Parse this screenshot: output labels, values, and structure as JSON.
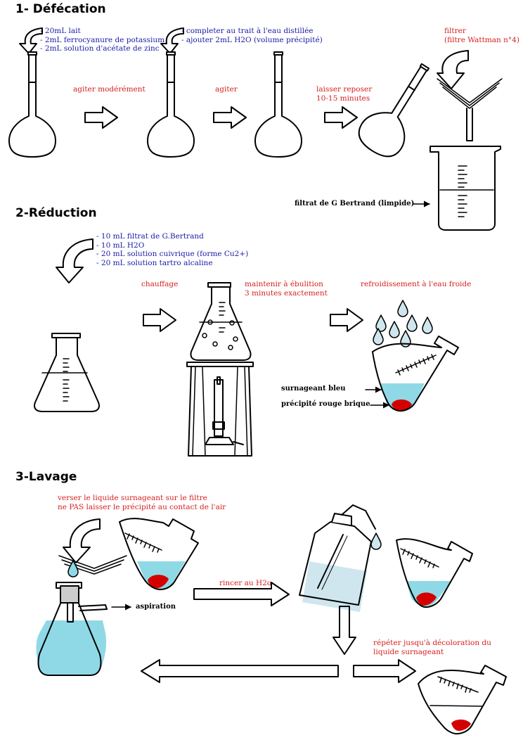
{
  "sections": {
    "s1": "1- Défécation",
    "s2": "2-Réduction",
    "s3": "3-Lavage"
  },
  "defecation": {
    "reagents": [
      "- 20mL lait",
      "- 2mL ferrocyanure de potassium",
      "- 2mL solution d'acétate de zinc"
    ],
    "fill": [
      "- completer au trait à l'eau distillée",
      "- ajouter 2mL H2O (volume précipité)"
    ],
    "step_stir_gently": "agiter modérément",
    "step_stir": "agiter",
    "step_settle": [
      "laisser reposer",
      "10-15 minutes"
    ],
    "step_filter": [
      "filtrer",
      "(filtre Wattman n°4)"
    ],
    "filtrate_label": "filtrat de G Bertrand (limpide)"
  },
  "reduction": {
    "reagents": [
      "- 10 mL filtrat de G.Bertrand",
      "- 10 mL H2O",
      "- 20 mL solution cuivrique (forme Cu2+)",
      "- 20 mL solution tartro alcaline"
    ],
    "step_heat": "chauffage",
    "step_boil": [
      "maintenir à ébulition",
      "3 minutes exactement"
    ],
    "step_cool": "refroidissement à l'eau froide",
    "label_supernatant": "surnageant bleu",
    "label_precipitate": "précipité rouge brique"
  },
  "lavage": {
    "instruction": [
      "verser le liquide surnageant sur le filtre",
      "ne PAS laisser le précipité au contact de l'air"
    ],
    "suction_label": "aspiration",
    "rinse_label": "rincer au H2o",
    "repeat_label": [
      "répéter jusqu'à décoloration du",
      "liquide surnageant"
    ]
  },
  "colors": {
    "text_red": "#d62020",
    "text_blue": "#1a1aa6",
    "liquid_blue": "#8fd9e6",
    "precipitate_red": "#d40000",
    "wash_liquid": "#cfe6ee"
  }
}
